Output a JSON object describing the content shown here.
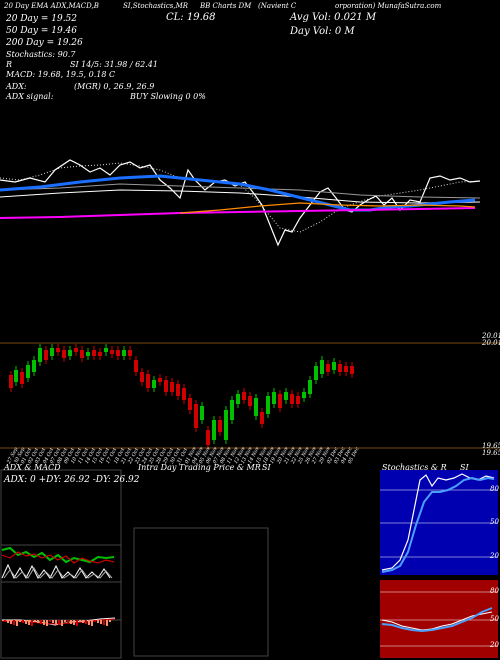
{
  "header": {
    "tab_label_left": "20 Day EMA",
    "tab_label_mid": "BB",
    "tab_label_right": "Charts DM",
    "studies_label": "ADX,MACD,B",
    "stoch_label": "SI,Stochastics,MR",
    "company_label": "(Navient C",
    "site_label": "orporation) MunafaSutra.com",
    "ema20": "20 Day = 19.52",
    "ema50": "50 Day = 19.46",
    "ema200": "200 Day = 19.26",
    "close": "CL: 19.68",
    "avg_vol": "Avg Vol: 0.021 M",
    "day_vol": "Day Vol: 0   M",
    "stochastics": "Stochastics: 90.7",
    "r_row_prefix": "R",
    "si_row": "SI 14/5: 31.98 / 62.41",
    "macd_row": "MACD: 19.68, 19.5, 0.18  C",
    "adx_label": "ADX:",
    "mgr_row": "(MGR) 0, 26.9, 26.9",
    "adx_signal_label": "ADX  signal:",
    "buy_row": "BUY Slowing 0 0%"
  },
  "price_panel": {
    "right_top_value": "20.01",
    "right_top_value2": "20.01",
    "right_bottom_value": "19.65",
    "right_bottom_value2": "19.65",
    "dates": [
      "27 Sep",
      "30 Sep",
      "01 Oct",
      "02 Oct",
      "03 Oct",
      "04 Oct",
      "07 Oct",
      "08 Oct",
      "09 Oct",
      "10 Oct",
      "11 Oct",
      "14 Oct",
      "15 Oct",
      "16 Oct",
      "17 Oct",
      "18 Oct",
      "21 Oct",
      "22 Oct",
      "23 Oct",
      "24 Oct",
      "25 Oct",
      "28 Oct",
      "29 Oct",
      "30 Oct",
      "31 Oct",
      "01 Nov",
      "04 Nov",
      "05 Nov",
      "06 Nov",
      "07 Nov",
      "08 Nov",
      "11 Nov",
      "12 Nov",
      "13 Nov",
      "14 Nov",
      "15 Nov",
      "18 Nov",
      "19 Nov",
      "20 Nov",
      "21 Nov",
      "22 Nov",
      "25 Nov",
      "26 Nov",
      "27 Nov",
      "29 Nov",
      "02 Dec",
      "03 Dec",
      "04 Dec",
      "05 Dec"
    ]
  },
  "bottom": {
    "adx_title": "ADX  & MACD",
    "adx_values": "ADX: 0  +DY: 26.92  -DY: 26.92",
    "intra_title": "Intra  Day Trading Price  & MR",
    "intra_si": "SI",
    "stoch_title": "Stochastics & R",
    "stoch_si": "SI",
    "stoch_levels": [
      "80",
      "50",
      "20"
    ],
    "si_levels": [
      "80",
      "50",
      "20"
    ]
  },
  "colors": {
    "up": "#00c000",
    "down": "#d00000",
    "ema_blue": "#1a6fff",
    "ema_white": "#ffffff",
    "ema_magenta": "#ff00ff",
    "ema_orange": "#ff8c00",
    "grid_brown": "#7a4a10",
    "stoch_bg": "#0000b0",
    "si_bg": "#a00000"
  }
}
